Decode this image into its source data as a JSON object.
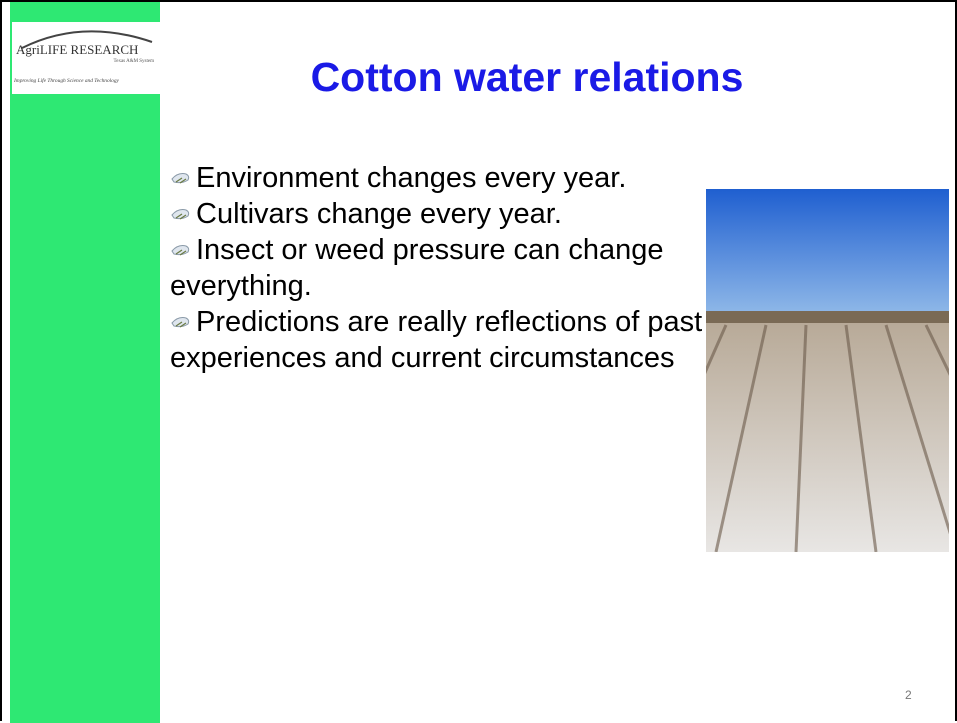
{
  "logo": {
    "name": "AgriLIFE RESEARCH",
    "system": "Texas A&M System",
    "tagline": "Improving Life Through Science and Technology"
  },
  "title": "Cotton water relations",
  "bullets": [
    "Environment changes every year.",
    "Cultivars change every year.",
    "Insect or weed pressure can change everything.",
    "Predictions are really reflections of past experiences and current circumstances"
  ],
  "page_number": "2"
}
